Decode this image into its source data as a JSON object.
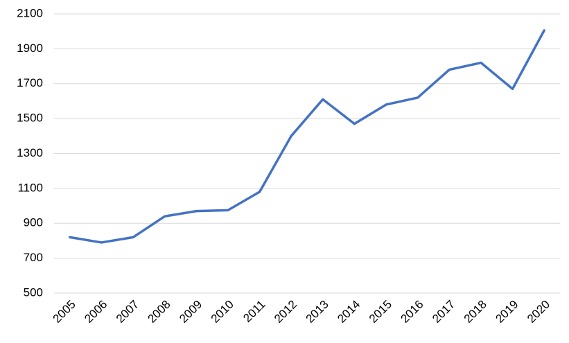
{
  "chart_data": {
    "type": "line",
    "categories": [
      "2005",
      "2006",
      "2007",
      "2008",
      "2009",
      "2010",
      "2011",
      "2012",
      "2013",
      "2014",
      "2015",
      "2016",
      "2017",
      "2018",
      "2019",
      "2020"
    ],
    "values": [
      820,
      790,
      820,
      940,
      970,
      975,
      1080,
      1400,
      1610,
      1470,
      1580,
      1620,
      1780,
      1820,
      1670,
      2005
    ],
    "color": "#4472c4",
    "ylim": [
      500,
      2100
    ],
    "yticks": [
      500,
      700,
      900,
      1100,
      1300,
      1500,
      1700,
      1900,
      2100
    ],
    "grid": true
  }
}
